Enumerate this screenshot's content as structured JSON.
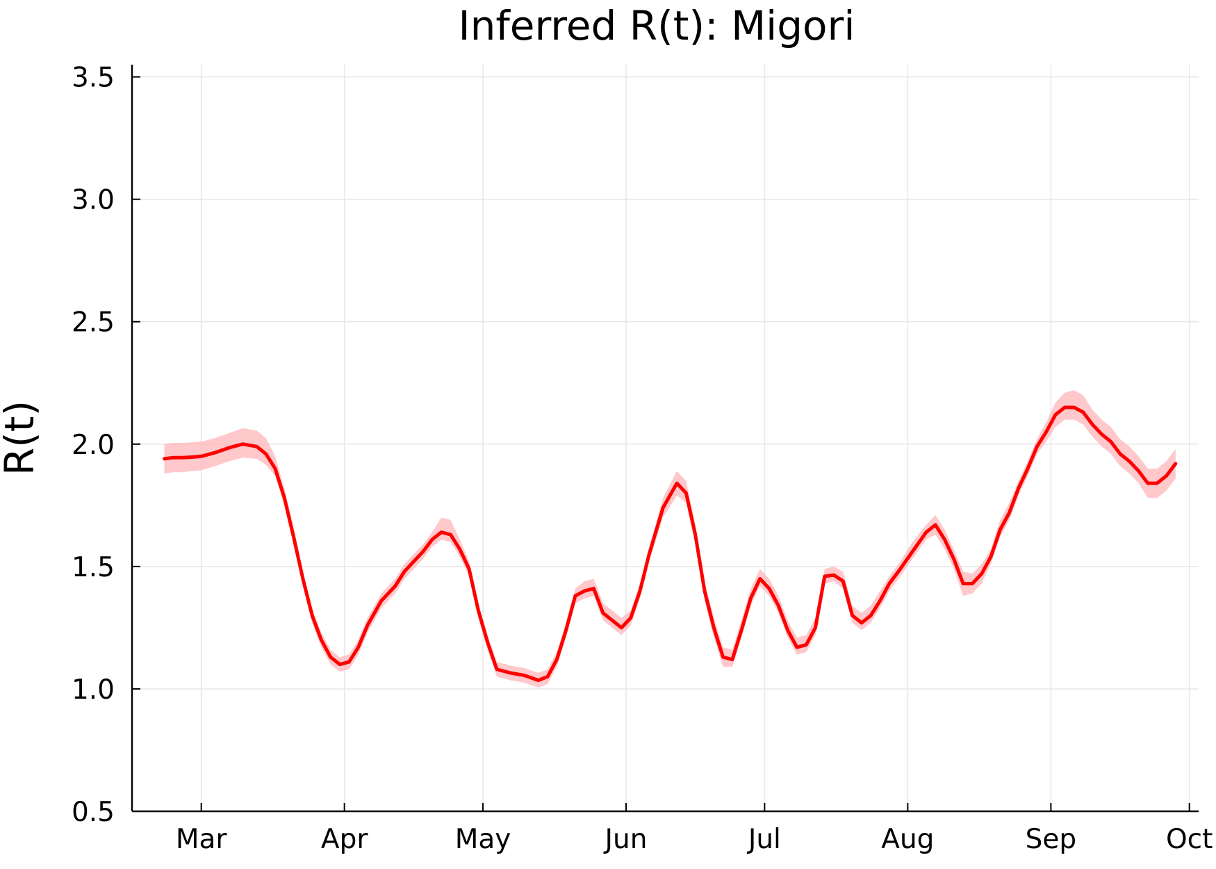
{
  "chart_data": {
    "type": "line",
    "title": "Inferred R(t): Migori",
    "xlabel": "",
    "ylabel": "R(t)",
    "ylim": [
      0.5,
      3.55
    ],
    "xlim": [
      "2020-02-15",
      "2020-10-03"
    ],
    "grid": true,
    "legend": "none",
    "x_ticks": [
      {
        "date": "2020-03-01",
        "label": "Mar"
      },
      {
        "date": "2020-04-01",
        "label": "Apr"
      },
      {
        "date": "2020-05-01",
        "label": "May"
      },
      {
        "date": "2020-06-01",
        "label": "Jun"
      },
      {
        "date": "2020-07-01",
        "label": "Jul"
      },
      {
        "date": "2020-08-01",
        "label": "Aug"
      },
      {
        "date": "2020-09-01",
        "label": "Sep"
      },
      {
        "date": "2020-10-01",
        "label": "Oct"
      }
    ],
    "y_ticks": [
      {
        "value": 0.5,
        "label": "0.5"
      },
      {
        "value": 1.0,
        "label": "1.0"
      },
      {
        "value": 1.5,
        "label": "1.5"
      },
      {
        "value": 2.0,
        "label": "2.0"
      },
      {
        "value": 2.5,
        "label": "2.5"
      },
      {
        "value": 3.0,
        "label": "3.0"
      },
      {
        "value": 3.5,
        "label": "3.5"
      }
    ],
    "colors": {
      "line": "#ff0000",
      "band": "#ffb6b9"
    },
    "series": [
      {
        "x": [
          "2020-02-22",
          "2020-02-24",
          "2020-02-26",
          "2020-02-28",
          "2020-03-01",
          "2020-03-04",
          "2020-03-07",
          "2020-03-10",
          "2020-03-13",
          "2020-03-15",
          "2020-03-17",
          "2020-03-19",
          "2020-03-21",
          "2020-03-23",
          "2020-03-25",
          "2020-03-27",
          "2020-03-29",
          "2020-03-31",
          "2020-04-02",
          "2020-04-04",
          "2020-04-06",
          "2020-04-09",
          "2020-04-12",
          "2020-04-14",
          "2020-04-16",
          "2020-04-18",
          "2020-04-20",
          "2020-04-22",
          "2020-04-24",
          "2020-04-26",
          "2020-04-28",
          "2020-04-30",
          "2020-05-02",
          "2020-05-04",
          "2020-05-07",
          "2020-05-10",
          "2020-05-13",
          "2020-05-15",
          "2020-05-17",
          "2020-05-19",
          "2020-05-21",
          "2020-05-23",
          "2020-05-25",
          "2020-05-27",
          "2020-05-29",
          "2020-05-31",
          "2020-06-02",
          "2020-06-04",
          "2020-06-06",
          "2020-06-09",
          "2020-06-12",
          "2020-06-14",
          "2020-06-16",
          "2020-06-18",
          "2020-06-20",
          "2020-06-22",
          "2020-06-24",
          "2020-06-26",
          "2020-06-28",
          "2020-06-30",
          "2020-07-02",
          "2020-07-04",
          "2020-07-06",
          "2020-07-08",
          "2020-07-10",
          "2020-07-12",
          "2020-07-14",
          "2020-07-16",
          "2020-07-18",
          "2020-07-20",
          "2020-07-22",
          "2020-07-24",
          "2020-07-26",
          "2020-07-28",
          "2020-07-30",
          "2020-08-02",
          "2020-08-05",
          "2020-08-07",
          "2020-08-09",
          "2020-08-11",
          "2020-08-13",
          "2020-08-15",
          "2020-08-17",
          "2020-08-19",
          "2020-08-21",
          "2020-08-23",
          "2020-08-25",
          "2020-08-27",
          "2020-08-29",
          "2020-08-31",
          "2020-09-02",
          "2020-09-04",
          "2020-09-06",
          "2020-09-08",
          "2020-09-10",
          "2020-09-12",
          "2020-09-14",
          "2020-09-16",
          "2020-09-18",
          "2020-09-20",
          "2020-09-22",
          "2020-09-24",
          "2020-09-26",
          "2020-09-28"
        ],
        "y": [
          1.94,
          1.945,
          1.945,
          1.947,
          1.95,
          1.965,
          1.985,
          2.0,
          1.99,
          1.96,
          1.9,
          1.78,
          1.62,
          1.45,
          1.3,
          1.2,
          1.13,
          1.1,
          1.11,
          1.17,
          1.26,
          1.36,
          1.42,
          1.48,
          1.52,
          1.56,
          1.61,
          1.64,
          1.63,
          1.57,
          1.49,
          1.32,
          1.19,
          1.08,
          1.065,
          1.055,
          1.035,
          1.05,
          1.12,
          1.24,
          1.38,
          1.4,
          1.41,
          1.31,
          1.28,
          1.25,
          1.29,
          1.4,
          1.55,
          1.74,
          1.84,
          1.8,
          1.63,
          1.4,
          1.25,
          1.13,
          1.12,
          1.24,
          1.37,
          1.45,
          1.41,
          1.34,
          1.24,
          1.17,
          1.18,
          1.25,
          1.46,
          1.465,
          1.44,
          1.3,
          1.27,
          1.3,
          1.36,
          1.43,
          1.48,
          1.56,
          1.64,
          1.67,
          1.61,
          1.53,
          1.43,
          1.43,
          1.47,
          1.54,
          1.65,
          1.72,
          1.82,
          1.9,
          1.99,
          2.05,
          2.12,
          2.15,
          2.15,
          2.13,
          2.08,
          2.04,
          2.01,
          1.96,
          1.93,
          1.89,
          1.84,
          1.84,
          1.87,
          1.92
        ],
        "lower": [
          1.88,
          1.885,
          1.885,
          1.89,
          1.893,
          1.91,
          1.93,
          1.945,
          1.94,
          1.915,
          1.87,
          1.75,
          1.59,
          1.42,
          1.27,
          1.17,
          1.1,
          1.07,
          1.08,
          1.14,
          1.23,
          1.33,
          1.39,
          1.45,
          1.49,
          1.53,
          1.58,
          1.61,
          1.6,
          1.54,
          1.46,
          1.29,
          1.16,
          1.05,
          1.035,
          1.025,
          1.005,
          1.02,
          1.09,
          1.21,
          1.35,
          1.37,
          1.38,
          1.28,
          1.25,
          1.22,
          1.26,
          1.37,
          1.52,
          1.7,
          1.79,
          1.76,
          1.59,
          1.36,
          1.21,
          1.09,
          1.09,
          1.21,
          1.34,
          1.42,
          1.38,
          1.31,
          1.21,
          1.14,
          1.15,
          1.22,
          1.43,
          1.44,
          1.41,
          1.27,
          1.24,
          1.27,
          1.33,
          1.4,
          1.45,
          1.53,
          1.61,
          1.63,
          1.57,
          1.49,
          1.38,
          1.39,
          1.43,
          1.51,
          1.62,
          1.69,
          1.79,
          1.87,
          1.96,
          2.01,
          2.07,
          2.1,
          2.1,
          2.08,
          2.03,
          1.99,
          1.96,
          1.91,
          1.88,
          1.84,
          1.78,
          1.78,
          1.81,
          1.86
        ],
        "upper": [
          2.0,
          2.005,
          2.005,
          2.007,
          2.01,
          2.025,
          2.045,
          2.065,
          2.055,
          2.025,
          1.95,
          1.82,
          1.66,
          1.48,
          1.33,
          1.23,
          1.16,
          1.13,
          1.14,
          1.2,
          1.29,
          1.39,
          1.45,
          1.51,
          1.55,
          1.59,
          1.64,
          1.7,
          1.69,
          1.61,
          1.52,
          1.35,
          1.22,
          1.11,
          1.095,
          1.085,
          1.065,
          1.08,
          1.15,
          1.27,
          1.41,
          1.44,
          1.45,
          1.35,
          1.32,
          1.29,
          1.32,
          1.43,
          1.58,
          1.78,
          1.89,
          1.85,
          1.67,
          1.44,
          1.29,
          1.17,
          1.16,
          1.28,
          1.41,
          1.49,
          1.45,
          1.38,
          1.28,
          1.21,
          1.22,
          1.29,
          1.49,
          1.5,
          1.48,
          1.34,
          1.31,
          1.34,
          1.4,
          1.46,
          1.51,
          1.6,
          1.67,
          1.71,
          1.65,
          1.57,
          1.48,
          1.47,
          1.51,
          1.57,
          1.69,
          1.76,
          1.85,
          1.93,
          2.02,
          2.09,
          2.17,
          2.21,
          2.22,
          2.2,
          2.14,
          2.1,
          2.07,
          2.02,
          1.99,
          1.95,
          1.9,
          1.9,
          1.93,
          1.98
        ]
      }
    ]
  }
}
